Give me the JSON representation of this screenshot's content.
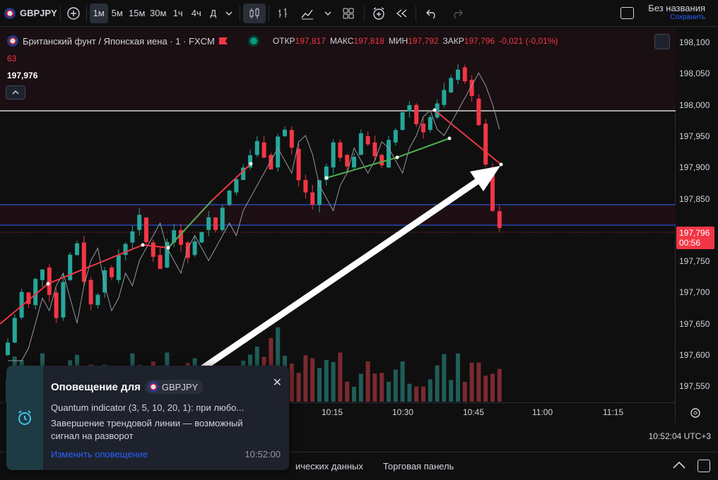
{
  "toolbar": {
    "symbol": "GBPJPY",
    "timeframes": [
      "1м",
      "5м",
      "15м",
      "30м",
      "1ч",
      "4ч",
      "Д"
    ],
    "active_tf": "1м"
  },
  "title": {
    "name": "Без названия",
    "status": "Сохранить"
  },
  "legend": {
    "name": "Британский фунт / Японская иена · 1 · FXCM",
    "o_label": "ОТКР",
    "o": "197,817",
    "h_label": "МАКС",
    "h": "197,818",
    "l_label": "МИН",
    "l": "197,792",
    "c_label": "ЗАКР",
    "c": "197,796",
    "chg": "-0,021 (-0,01%)"
  },
  "indicator": {
    "value1": "63",
    "value2": "197,976"
  },
  "price_axis": {
    "ticks": [
      "198,100",
      "198,050",
      "198,000",
      "197,950",
      "197,900",
      "197,850",
      "197,800",
      "197,750",
      "197,700",
      "197,650",
      "197,600",
      "197,550"
    ],
    "last_price": "197,796",
    "countdown": "00:56"
  },
  "time_axis": {
    "ticks": [
      "10:15",
      "10:30",
      "10:45",
      "11:00",
      "11:15"
    ],
    "clock": "10:52:04 UTC+3"
  },
  "bottom": {
    "tab1": "ических данных",
    "tab2": "Торговая панель"
  },
  "notification": {
    "title": "Оповещение для",
    "symbol": "GBPJPY",
    "line1": "Quantum indicator (3, 5, 10, 20, 1): при любо...",
    "line2": "Завершение трендовой линии — возможный сигнал на разворот",
    "link": "Изменить оповещение",
    "time": "10:52:00"
  },
  "colors": {
    "up": "#26a69a",
    "down": "#f23645",
    "bg": "#0f0f0f",
    "blue_line": "#2962ff",
    "trend_red": "#f23645",
    "trend_green": "#4caf50"
  }
}
